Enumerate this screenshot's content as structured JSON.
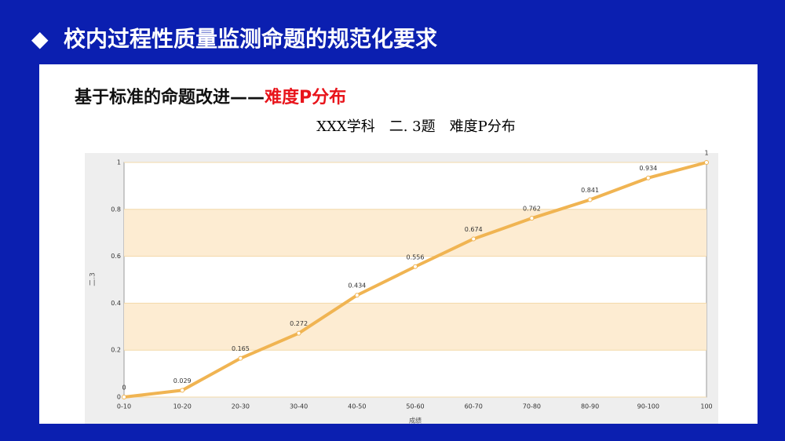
{
  "slide_title": "校内过程性质量监测命题的规范化要求",
  "heading": {
    "main": "基于标准的命题改进——",
    "highlight": "难度P分布"
  },
  "chart_data": {
    "type": "line",
    "title": "XXX学科　二. 3题　难度P分布",
    "y_label": "二.3",
    "x_label": "成绩",
    "categories": [
      "0-10",
      "10-20",
      "20-30",
      "30-40",
      "40-50",
      "50-60",
      "60-70",
      "70-80",
      "80-90",
      "90-100",
      "100"
    ],
    "values": [
      0,
      0.029,
      0.165,
      0.272,
      0.434,
      0.556,
      0.674,
      0.762,
      0.841,
      0.934,
      1
    ],
    "color": "#f0b452",
    "band_color": "#fdecd2",
    "ylim": [
      0,
      1
    ],
    "yticks": [
      0,
      0.2,
      0.4,
      0.6,
      0.8,
      1
    ],
    "grid": true
  }
}
